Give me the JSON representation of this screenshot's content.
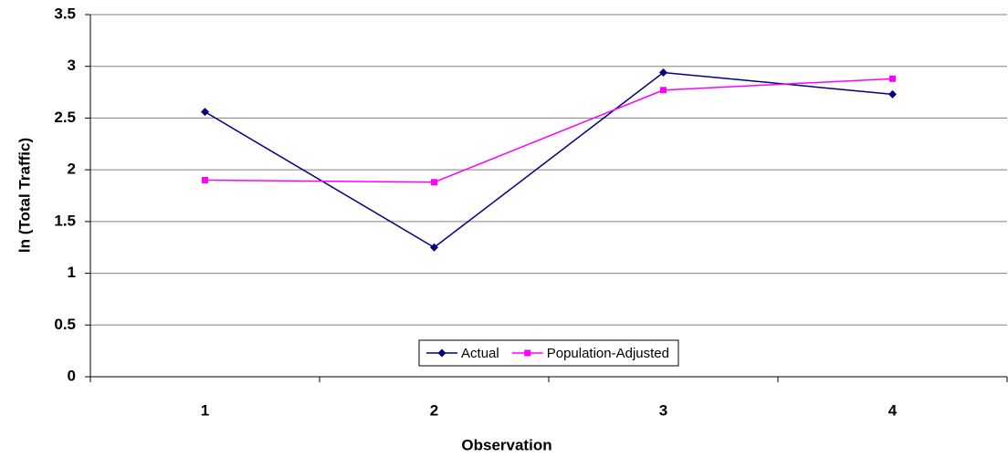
{
  "chart_data": {
    "type": "line",
    "x_label": "Observation",
    "y_label": "ln (Total Traffic)",
    "categories": [
      "1",
      "2",
      "3",
      "4"
    ],
    "series": [
      {
        "name": "Actual",
        "color": "#000080",
        "marker": "diamond",
        "values": [
          2.56,
          1.25,
          2.94,
          2.73
        ]
      },
      {
        "name": "Population-Adjusted",
        "color": "#ff00ff",
        "marker": "square",
        "values": [
          1.9,
          1.88,
          2.77,
          2.88
        ]
      }
    ],
    "ylim": [
      0,
      3.5
    ],
    "yticks": [
      0,
      0.5,
      1,
      1.5,
      2,
      2.5,
      3,
      3.5
    ],
    "grid": true,
    "legend": "bottom"
  }
}
